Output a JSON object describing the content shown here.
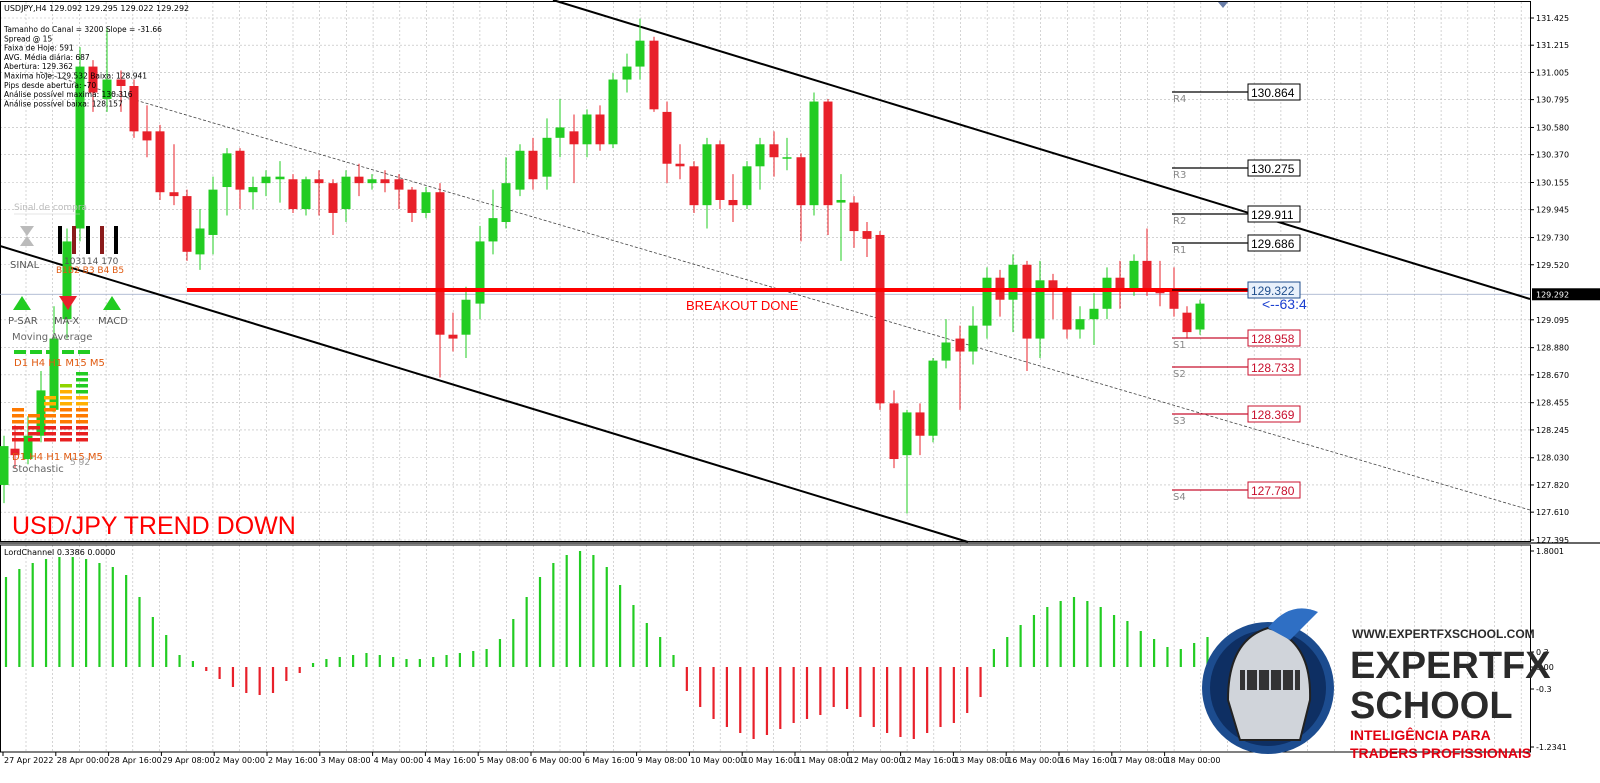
{
  "header": {
    "symbol_line": "USDJPY,H4  129.092 129.295 129.022 129.292",
    "info_lines": [
      "Tamanho do Canal = 3200 Slope = -31.66",
      "Spread @ 15",
      "Faixa de Hoje: 591",
      "AVG. Média diária: 687",
      "Abertura: 129.362",
      "Maxima hoje: 129.532  Baixa: 128.941",
      "Pips desde abertura: -70",
      "Análise possível maxima: 130.316",
      "Análise possível baixa: 128.157"
    ]
  },
  "price_axis": {
    "ticks": [
      "131.425",
      "131.215",
      "131.005",
      "130.795",
      "130.580",
      "130.370",
      "130.155",
      "129.945",
      "129.730",
      "129.520",
      "129.095",
      "128.880",
      "128.670",
      "128.455",
      "128.245",
      "128.030",
      "127.820",
      "127.610",
      "127.395"
    ],
    "current_price": "129.292"
  },
  "levels": {
    "resistances": [
      {
        "name": "R4",
        "value": "130.864"
      },
      {
        "name": "R3",
        "value": "130.275"
      },
      {
        "name": "R2",
        "value": "129.911"
      },
      {
        "name": "R1",
        "value": "129.686"
      }
    ],
    "pivot": {
      "value": "129.322"
    },
    "supports": [
      {
        "name": "S1",
        "value": "128.958"
      },
      {
        "name": "S2",
        "value": "128.733"
      },
      {
        "name": "S3",
        "value": "128.369"
      },
      {
        "name": "S4",
        "value": "127.780"
      }
    ],
    "distance_label": "<--63:4"
  },
  "annotations": {
    "breakout": "BREAKOUT DONE",
    "trend": "USD/JPY TREND DOWN"
  },
  "indicator_panel": {
    "signal_label": "Sinal de compra",
    "sinal": "SINAL",
    "sinal_numbers": "103114    170",
    "sinal_bottom": "B1B2 B3 B4 B5",
    "buttons": [
      "P-SAR",
      "MA-X",
      "MACD"
    ],
    "moving_average": "Moving Average",
    "timeframes_1": "D1 H4 H1 M15  M5",
    "timeframes_2": "D1 H4 H1 M15  M5",
    "stochastic": "Stochastic",
    "stoch_values": "5  92"
  },
  "sub_window": {
    "title": "LordChannel 0.3386 0.0000",
    "axis": [
      "1.8001",
      "0.3",
      "0.00",
      "-0.3",
      "-1.2341"
    ]
  },
  "time_axis": [
    "27 Apr 2022",
    "28 Apr 00:00",
    "28 Apr 16:00",
    "29 Apr 08:00",
    "2 May 00:00",
    "2 May 16:00",
    "3 May 08:00",
    "4 May 00:00",
    "4 May 16:00",
    "5 May 08:00",
    "6 May 00:00",
    "6 May 16:00",
    "9 May 08:00",
    "10 May 00:00",
    "10 May 16:00",
    "11 May 08:00",
    "12 May 00:00",
    "12 May 16:00",
    "13 May 08:00",
    "16 May 00:00",
    "16 May 16:00",
    "17 May 08:00",
    "18 May 00:00"
  ],
  "watermark": {
    "url": "WWW.EXPERTFXSCHOOL.COM",
    "brand_line1": "EXPERTFX",
    "brand_line2": "SCHOOL",
    "tagline1": "INTELIGÊNCIA PARA",
    "tagline2": "TRADERS PROFISSIONAIS"
  },
  "colors": {
    "bull": "#22cc22",
    "bear": "#e8202a",
    "breakout": "#ff0000",
    "channel": "#000000",
    "pivot_box": "#1f4e8c",
    "support_box": "#c8102e",
    "tagline": "#e00010",
    "brand": "#2a2a2a"
  },
  "chart_data": {
    "type": "candlestick",
    "symbol": "USDJPY",
    "timeframe": "H4",
    "ylim": [
      127.395,
      131.425
    ]
  }
}
